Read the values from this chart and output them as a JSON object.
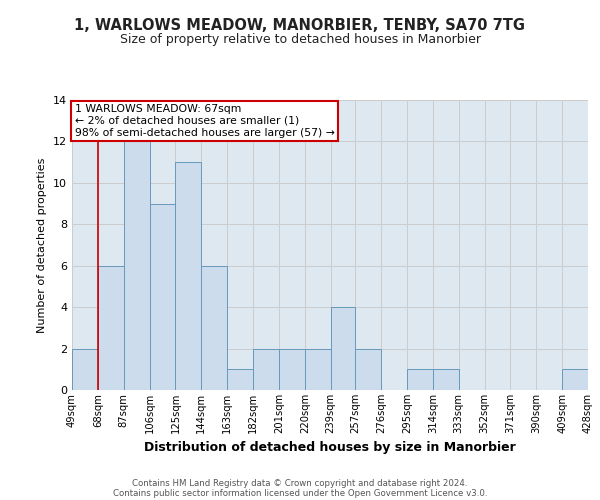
{
  "title": "1, WARLOWS MEADOW, MANORBIER, TENBY, SA70 7TG",
  "subtitle": "Size of property relative to detached houses in Manorbier",
  "xlabel": "Distribution of detached houses by size in Manorbier",
  "ylabel": "Number of detached properties",
  "bin_edges": [
    49,
    68,
    87,
    106,
    125,
    144,
    163,
    182,
    201,
    220,
    239,
    257,
    276,
    295,
    314,
    333,
    352,
    371,
    390,
    409,
    428
  ],
  "bin_labels": [
    "49sqm",
    "68sqm",
    "87sqm",
    "106sqm",
    "125sqm",
    "144sqm",
    "163sqm",
    "182sqm",
    "201sqm",
    "220sqm",
    "239sqm",
    "257sqm",
    "276sqm",
    "295sqm",
    "314sqm",
    "333sqm",
    "352sqm",
    "371sqm",
    "390sqm",
    "409sqm",
    "428sqm"
  ],
  "counts": [
    2,
    6,
    12,
    9,
    11,
    6,
    1,
    2,
    2,
    2,
    4,
    2,
    0,
    1,
    1,
    0,
    0,
    0,
    0,
    1
  ],
  "bar_color": "#ccdcec",
  "bar_edgecolor": "#6699bb",
  "property_line_x": 68,
  "property_line_color": "#cc0000",
  "annotation_line1": "1 WARLOWS MEADOW: 67sqm",
  "annotation_line2": "← 2% of detached houses are smaller (1)",
  "annotation_line3": "98% of semi-detached houses are larger (57) →",
  "annotation_box_color": "#ffffff",
  "annotation_box_edgecolor": "#cc0000",
  "ylim": [
    0,
    14
  ],
  "yticks": [
    0,
    2,
    4,
    6,
    8,
    10,
    12,
    14
  ],
  "grid_color": "#cccccc",
  "background_color": "#dde8f0",
  "footer_line1": "Contains HM Land Registry data © Crown copyright and database right 2024.",
  "footer_line2": "Contains public sector information licensed under the Open Government Licence v3.0."
}
